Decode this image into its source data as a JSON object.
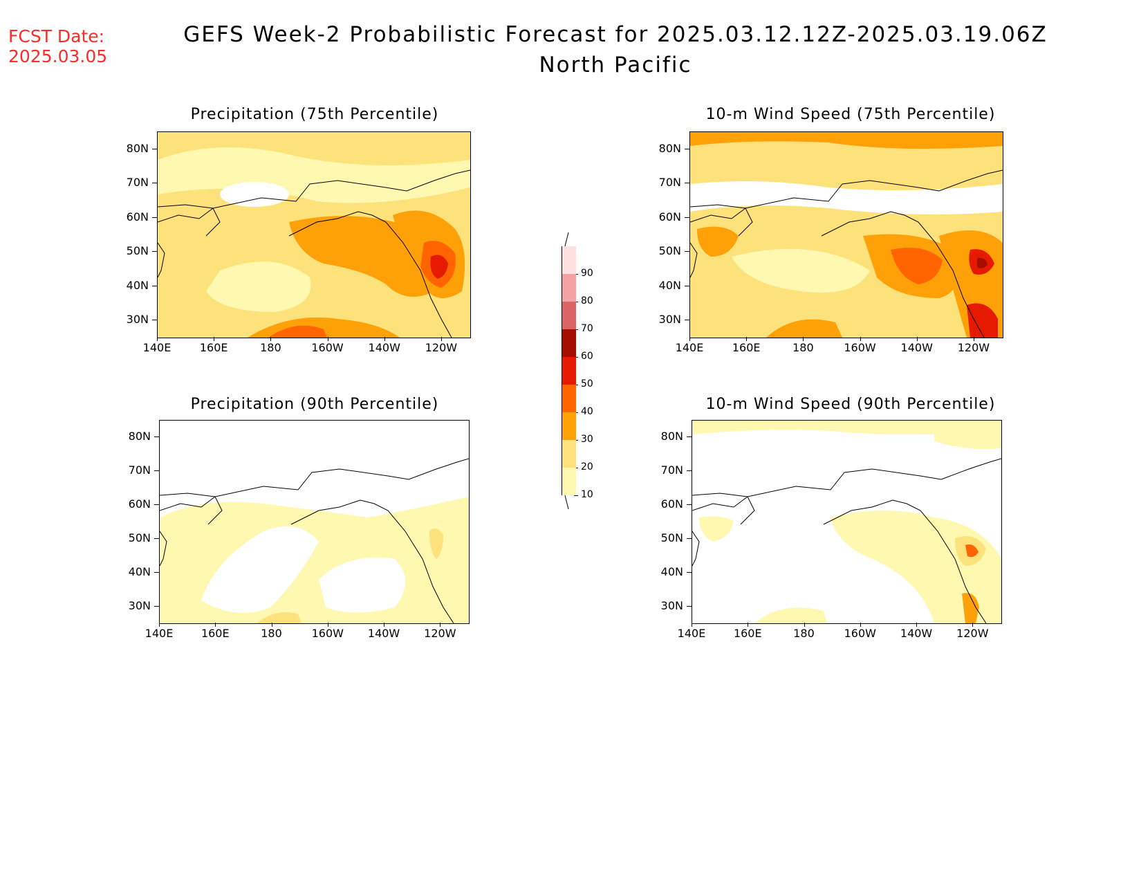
{
  "fcst_date": {
    "label": "FCST Date:",
    "value": "2025.03.05"
  },
  "title": {
    "line1": "GEFS Week-2 Probabilistic Forecast for 2025.03.12.12Z-2025.03.19.06Z",
    "line2": "North Pacific"
  },
  "latitude_labels": [
    "80N",
    "70N",
    "60N",
    "50N",
    "40N",
    "30N"
  ],
  "longitude_labels": [
    "140E",
    "160E",
    "180",
    "160W",
    "140W",
    "120W"
  ],
  "panels": [
    {
      "id": "precip-75",
      "title": "Precipitation (75th Percentile)"
    },
    {
      "id": "wind-75",
      "title": "10-m Wind Speed (75th Percentile)"
    },
    {
      "id": "precip-90",
      "title": "Precipitation (90th Percentile)"
    },
    {
      "id": "wind-90",
      "title": "10-m Wind Speed (90th Percentile)"
    }
  ],
  "colorbar": {
    "levels": [
      "10",
      "20",
      "30",
      "40",
      "50",
      "60",
      "70",
      "80",
      "90"
    ],
    "colors": [
      "#fff8b0",
      "#fde17a",
      "#fea008",
      "#ff6400",
      "#e61a00",
      "#a50f00",
      "#dd6464",
      "#f3a3a3",
      "#fde0e0"
    ]
  },
  "colors": {
    "date_text": "#ff2a2a",
    "p10": "#fff8b0",
    "p20": "#fde17a",
    "p30": "#fea008",
    "p40": "#ff6400",
    "p50": "#e61a00",
    "p60": "#a50f00"
  }
}
